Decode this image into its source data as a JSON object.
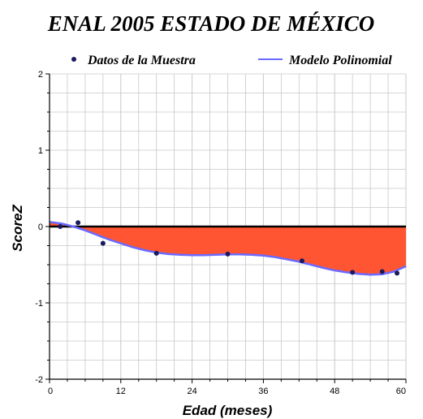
{
  "chart_data": {
    "type": "line",
    "title": "ENAL 2005 ESTADO DE MÉXICO",
    "xlabel": "Edad (meses)",
    "ylabel": "ScoreZ",
    "xlim": [
      0,
      60
    ],
    "ylim": [
      -2,
      2
    ],
    "x_ticks": [
      "0",
      "12",
      "24",
      "36",
      "48",
      "60"
    ],
    "y_ticks": [
      "-2",
      "-1",
      "0",
      "1",
      "2"
    ],
    "grid": true,
    "legend_position": "top",
    "series": [
      {
        "name": "Datos de la Muestra",
        "kind": "scatter",
        "color": "#1a1a5e",
        "x": [
          1.8,
          4.8,
          9,
          18,
          30,
          42.5,
          51,
          56,
          58.5
        ],
        "y": [
          0.0,
          0.05,
          -0.22,
          -0.35,
          -0.36,
          -0.45,
          -0.6,
          -0.59,
          -0.61
        ]
      },
      {
        "name": "Modelo Polinomial",
        "kind": "line",
        "color": "#6a6aff",
        "x": [
          0,
          2,
          4,
          6,
          8,
          10,
          12,
          14,
          16,
          18,
          20,
          22,
          24,
          26,
          28,
          30,
          32,
          34,
          36,
          38,
          40,
          42,
          44,
          46,
          48,
          50,
          52,
          54,
          56,
          58,
          60
        ],
        "y": [
          0.06,
          0.04,
          0.0,
          -0.05,
          -0.11,
          -0.17,
          -0.22,
          -0.27,
          -0.31,
          -0.34,
          -0.36,
          -0.37,
          -0.375,
          -0.375,
          -0.37,
          -0.365,
          -0.365,
          -0.37,
          -0.38,
          -0.4,
          -0.43,
          -0.46,
          -0.5,
          -0.54,
          -0.575,
          -0.6,
          -0.62,
          -0.63,
          -0.625,
          -0.59,
          -0.52
        ]
      }
    ],
    "fill_between": {
      "reference_y": 0,
      "color": "#ff5533"
    },
    "reference_line": {
      "y": 0,
      "color": "#000000"
    }
  }
}
